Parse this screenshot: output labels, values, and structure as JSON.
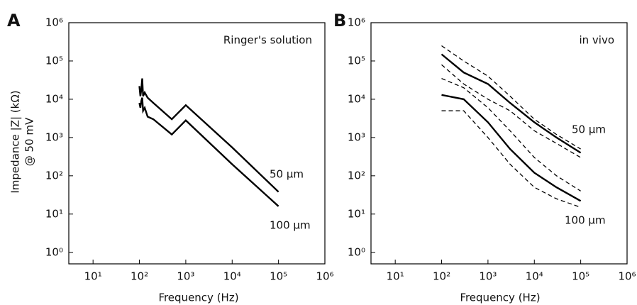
{
  "chart_data": [
    {
      "type": "line",
      "panel": "A",
      "log_x": true,
      "log_y": true,
      "ylabel": [
        "Impedance |Z| (kΩ)",
        "@ 50 mV"
      ],
      "xlabel": "Frequency (Hz)",
      "xlim": [
        3,
        1000000
      ],
      "ylim": [
        0.5,
        1000000
      ],
      "xticks": [
        {
          "value": 10,
          "label": "10¹"
        },
        {
          "value": 100,
          "label": "10²"
        },
        {
          "value": 1000,
          "label": "10³"
        },
        {
          "value": 10000,
          "label": "10⁴"
        },
        {
          "value": 100000,
          "label": "10⁵"
        },
        {
          "value": 1000000,
          "label": "10⁶"
        }
      ],
      "yticks": [
        {
          "value": 1,
          "label": "10⁰"
        },
        {
          "value": 10,
          "label": "10¹"
        },
        {
          "value": 100,
          "label": "10²"
        },
        {
          "value": 1000,
          "label": "10³"
        },
        {
          "value": 10000,
          "label": "10⁴"
        },
        {
          "value": 100000,
          "label": "10⁵"
        },
        {
          "value": 1000000,
          "label": "10⁶"
        }
      ],
      "annotations": [
        "Ringer's solution",
        "50 μm",
        "100 μm"
      ],
      "series": [
        {
          "color": "#000000",
          "style": "solid",
          "x": [
            100,
            105,
            110,
            115,
            120,
            130,
            150,
            200,
            500,
            1000,
            10000,
            100000
          ],
          "values": [
            22000,
            12000,
            18000,
            35000,
            12000,
            15000,
            11000,
            8000,
            3000,
            7000,
            550,
            38
          ]
        },
        {
          "color": "#000000",
          "style": "solid",
          "x": [
            100,
            105,
            110,
            115,
            120,
            130,
            150,
            200,
            500,
            1000,
            10000,
            100000
          ],
          "values": [
            8000,
            6000,
            9000,
            11000,
            5000,
            6000,
            3500,
            3000,
            1200,
            2800,
            200,
            16
          ]
        }
      ]
    },
    {
      "type": "line",
      "panel": "B",
      "log_x": true,
      "log_y": true,
      "xlabel": "Frequency (Hz)",
      "xlim": [
        3,
        1000000
      ],
      "ylim": [
        0.5,
        1000000
      ],
      "xticks": [
        {
          "value": 10,
          "label": "10¹"
        },
        {
          "value": 100,
          "label": "10²"
        },
        {
          "value": 1000,
          "label": "10³"
        },
        {
          "value": 10000,
          "label": "10⁴"
        },
        {
          "value": 100000,
          "label": "10⁵"
        },
        {
          "value": 1000000,
          "label": "10⁶"
        }
      ],
      "yticks": [
        {
          "value": 1,
          "label": "10⁰"
        },
        {
          "value": 10,
          "label": "10¹"
        },
        {
          "value": 100,
          "label": "10²"
        },
        {
          "value": 1000,
          "label": "10³"
        },
        {
          "value": 10000,
          "label": "10⁴"
        },
        {
          "value": 100000,
          "label": "10⁵"
        },
        {
          "value": 1000000,
          "label": "10⁶"
        }
      ],
      "annotations": [
        "in vivo",
        "50 μm",
        "100 μm"
      ],
      "series": [
        {
          "color": "#000000",
          "style": "solid",
          "x": [
            100,
            300,
            1000,
            3000,
            10000,
            30000,
            100000
          ],
          "values": [
            150000,
            50000,
            25000,
            8000,
            2500,
            1000,
            400
          ]
        },
        {
          "color": "#000000",
          "style": "dashed",
          "x": [
            100,
            300,
            1000,
            3000,
            10000,
            30000,
            100000
          ],
          "values": [
            250000,
            100000,
            40000,
            12000,
            3000,
            1200,
            500
          ]
        },
        {
          "color": "#000000",
          "style": "dashed",
          "x": [
            100,
            300,
            1000,
            3000,
            10000,
            30000,
            100000
          ],
          "values": [
            80000,
            25000,
            10000,
            5000,
            1500,
            700,
            300
          ]
        },
        {
          "color": "#000000",
          "style": "solid",
          "x": [
            100,
            300,
            1000,
            3000,
            10000,
            30000,
            100000
          ],
          "values": [
            13000,
            10000,
            2500,
            500,
            120,
            50,
            22
          ]
        },
        {
          "color": "#000000",
          "style": "dashed",
          "x": [
            100,
            300,
            1000,
            3000,
            10000,
            30000,
            100000
          ],
          "values": [
            35000,
            20000,
            6000,
            1500,
            300,
            100,
            40
          ]
        },
        {
          "color": "#000000",
          "style": "dashed",
          "x": [
            100,
            300,
            1000,
            3000,
            10000,
            30000,
            100000
          ],
          "values": [
            5000,
            5000,
            1000,
            200,
            50,
            25,
            15
          ]
        }
      ]
    }
  ]
}
